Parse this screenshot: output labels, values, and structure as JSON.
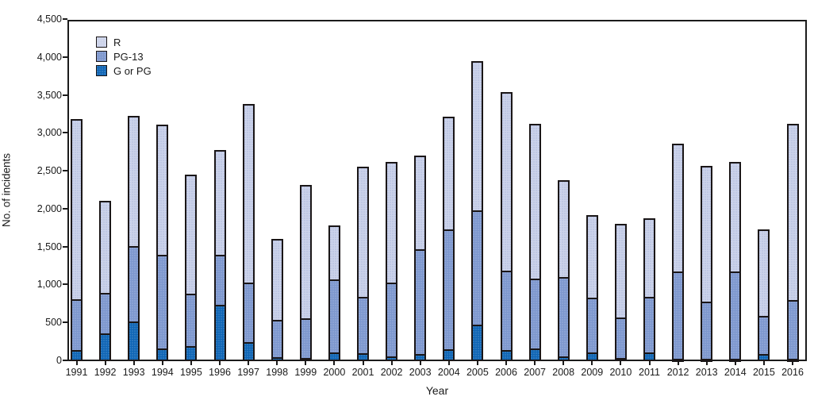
{
  "figure": {
    "y_axis_title": "No. of incidents",
    "x_axis_title": "Year",
    "legend": [
      {
        "label": "R",
        "color": "#ccd3ea"
      },
      {
        "label": "PG-13",
        "color": "#7d97ce"
      },
      {
        "label": "G or PG",
        "color": "#0f65b5"
      }
    ]
  },
  "chart_data": {
    "type": "bar",
    "stacked": true,
    "title": "",
    "xlabel": "Year",
    "ylabel": "No. of incidents",
    "ylim": [
      0,
      4500
    ],
    "ytick_step": 500,
    "ytick_labels": [
      "0",
      "500",
      "1,000",
      "1,500",
      "2,000",
      "2,500",
      "3,000",
      "3,500",
      "4,000",
      "4,500"
    ],
    "grid": false,
    "legend_position": "top-left-inside",
    "legend_order_top_to_bottom": [
      "R",
      "PG-13",
      "G or PG"
    ],
    "categories": [
      "1991",
      "1992",
      "1993",
      "1994",
      "1995",
      "1996",
      "1997",
      "1998",
      "1999",
      "2000",
      "2001",
      "2002",
      "2003",
      "2004",
      "2005",
      "2006",
      "2007",
      "2008",
      "2009",
      "2010",
      "2011",
      "2012",
      "2013",
      "2014",
      "2015",
      "2016"
    ],
    "series": [
      {
        "name": "G or PG",
        "color": "#0f65b5",
        "values": [
          150,
          370,
          520,
          170,
          200,
          740,
          250,
          50,
          40,
          110,
          100,
          60,
          90,
          160,
          480,
          150,
          170,
          60,
          110,
          40,
          110,
          30,
          20,
          30,
          90,
          20
        ]
      },
      {
        "name": "PG-13",
        "color": "#7d97ce",
        "values": [
          670,
          530,
          1000,
          1230,
          690,
          660,
          790,
          490,
          520,
          970,
          750,
          980,
          1390,
          1580,
          1510,
          1040,
          920,
          1050,
          730,
          540,
          740,
          1150,
          760,
          1150,
          510,
          790
        ]
      },
      {
        "name": "R",
        "color": "#ccd3ea",
        "values": [
          2370,
          1210,
          1710,
          1720,
          1570,
          1380,
          2350,
          1070,
          1760,
          710,
          1710,
          1590,
          1230,
          1480,
          1970,
          2360,
          2040,
          1280,
          1090,
          1230,
          1030,
          1690,
          1790,
          1450,
          1140,
          2320
        ]
      }
    ],
    "totals": [
      3190,
      2110,
      3230,
      3120,
      2460,
      2780,
      3390,
      1610,
      2320,
      1790,
      2560,
      2630,
      2710,
      3220,
      3960,
      3550,
      3130,
      2390,
      1930,
      1810,
      1880,
      2870,
      2570,
      2630,
      1740,
      3130
    ]
  }
}
